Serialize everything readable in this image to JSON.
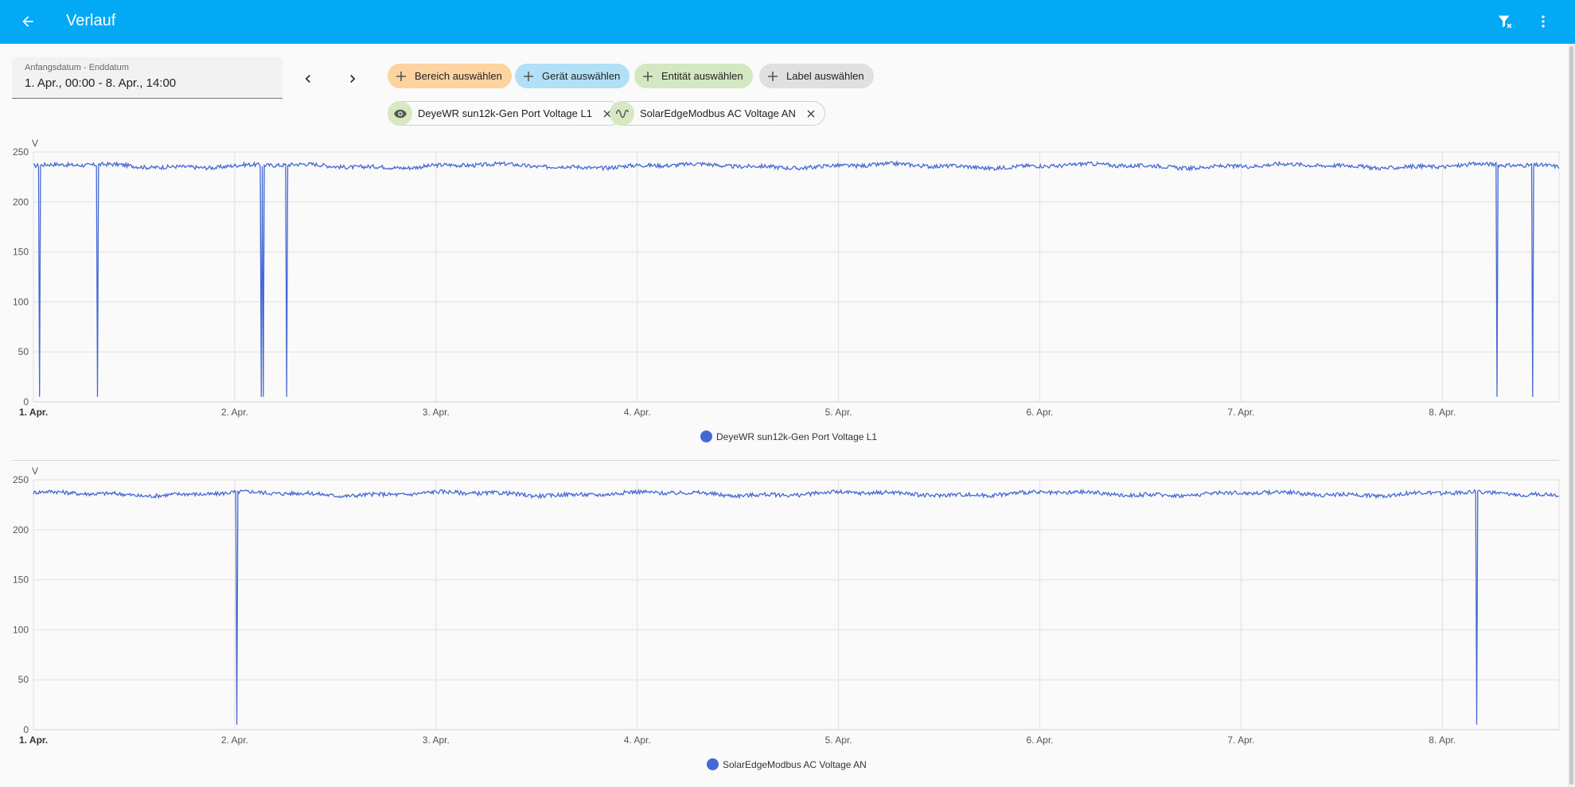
{
  "header": {
    "title": "Verlauf",
    "back_icon": "arrow-left-icon",
    "filter_icon": "filter-remove-icon",
    "menu_icon": "dots-vertical-icon",
    "background": "#03a9f4"
  },
  "date_picker": {
    "label": "Anfangsdatum - Enddatum",
    "value": "1. Apr., 00:00 - 8. Apr., 14:00"
  },
  "target_chips": [
    {
      "label": "Bereich auswählen",
      "color": "#fdd3a0"
    },
    {
      "label": "Gerät auswählen",
      "color": "#b2e0f7"
    },
    {
      "label": "Entität auswählen",
      "color": "#d3e8c0"
    },
    {
      "label": "Label auswählen",
      "color": "#e0e0e0"
    }
  ],
  "entity_chips": [
    {
      "label": "DeyeWR sun12k-Gen Port Voltage L1",
      "icon": "eye-icon"
    },
    {
      "label": "SolarEdgeModbus AC Voltage AN",
      "icon": "sine-wave-icon"
    }
  ],
  "chart_data": [
    {
      "type": "line",
      "ylabel": "V",
      "ylim": [
        0,
        250
      ],
      "yticks": [
        0,
        50,
        100,
        150,
        200,
        250
      ],
      "x_domain_days": [
        0,
        7.58
      ],
      "xticks": [
        "1. Apr.",
        "2. Apr.",
        "3. Apr.",
        "4. Apr.",
        "5. Apr.",
        "6. Apr.",
        "7. Apr.",
        "8. Apr."
      ],
      "grid": true,
      "legend_position": "bottom-center",
      "series": [
        {
          "name": "DeyeWR sun12k-Gen Port Voltage L1",
          "color": "#4569d4",
          "baseline": 236,
          "dips_days": [
            0.03,
            0.32,
            1.13,
            1.14,
            1.26,
            7.27,
            7.45
          ]
        }
      ]
    },
    {
      "type": "line",
      "ylabel": "V",
      "ylim": [
        0,
        250
      ],
      "yticks": [
        0,
        50,
        100,
        150,
        200,
        250
      ],
      "x_domain_days": [
        0,
        7.58
      ],
      "xticks": [
        "1. Apr.",
        "2. Apr.",
        "3. Apr.",
        "4. Apr.",
        "5. Apr.",
        "6. Apr.",
        "7. Apr.",
        "8. Apr."
      ],
      "grid": true,
      "legend_position": "bottom-center",
      "series": [
        {
          "name": "SolarEdgeModbus AC Voltage AN",
          "color": "#4569d4",
          "baseline": 236,
          "dips_days": [
            1.01,
            7.17
          ]
        }
      ]
    }
  ]
}
